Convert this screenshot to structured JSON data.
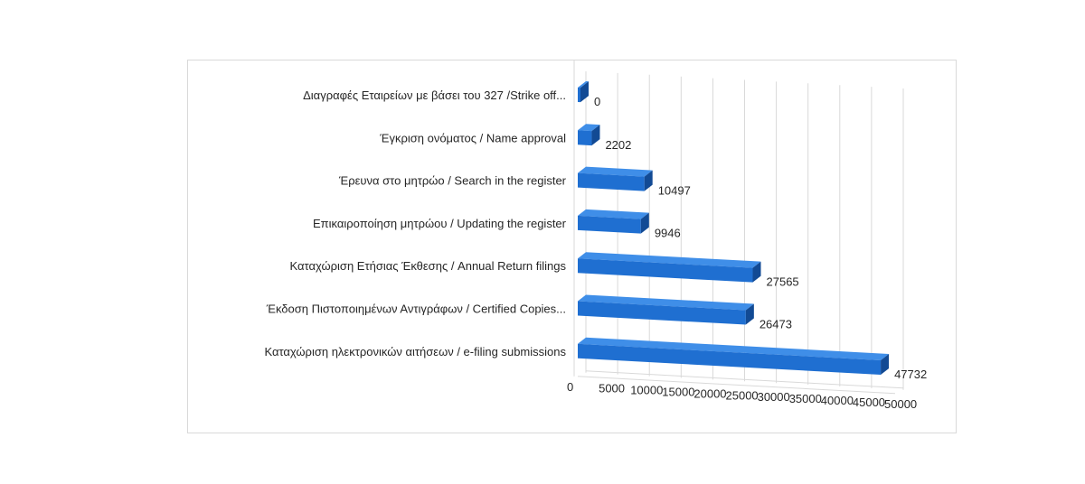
{
  "chart_data": {
    "type": "bar",
    "orientation": "horizontal",
    "style": "3d",
    "categories": [
      "Διαγραφές Εταιρείων  με  βάσει του 327 /Strike off...",
      "Έγκριση ονόματος / Name approval",
      "Έρευνα στο μητρώο / Search in the register",
      "Επικαιροποίηση μητρώου / Updating the register",
      "Καταχώριση Ετήσιας Έκθεσης / Annual Return filings",
      "Έκδοση Πιστοποιημένων Αντιγράφων / Certified Copies...",
      "Καταχώριση ηλεκτρονικών αιτήσεων / e-filing submissions"
    ],
    "values": [
      0,
      2202,
      10497,
      9946,
      27565,
      26473,
      47732
    ],
    "value_labels": [
      "0",
      "2202",
      "10497",
      "9946",
      "27565",
      "26473",
      "47732"
    ],
    "x_ticks": [
      "0",
      "5000",
      "10000",
      "15000",
      "20000",
      "25000",
      "30000",
      "35000",
      "40000",
      "45000",
      "50000"
    ],
    "xlim": [
      0,
      50000
    ],
    "grid": true,
    "colors": {
      "bar_front": "#1f6fd1",
      "bar_top": "#3f8ee8",
      "bar_end": "#124a94",
      "grid": "#d9d9d9",
      "text": "#262626"
    }
  }
}
